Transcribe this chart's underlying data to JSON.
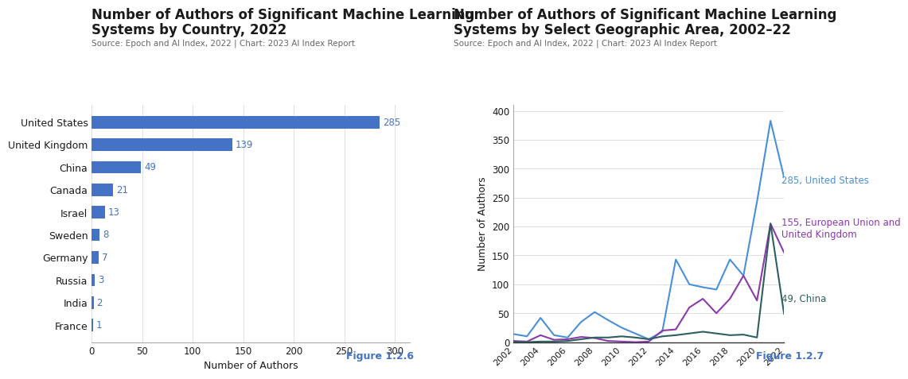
{
  "bar_chart": {
    "title_line1": "Number of Authors of Significant Machine Learning",
    "title_line2": "Systems by Country, 2022",
    "source": "Source: Epoch and AI Index, 2022 | Chart: 2023 AI Index Report",
    "xlabel": "Number of Authors",
    "figure_label": "Figure 1.2.6",
    "categories": [
      "France",
      "India",
      "Russia",
      "Germany",
      "Sweden",
      "Israel",
      "Canada",
      "China",
      "United Kingdom",
      "United States"
    ],
    "values": [
      1,
      2,
      3,
      7,
      8,
      13,
      21,
      49,
      139,
      285
    ],
    "bar_color": "#4472C4",
    "xlim": [
      0,
      315
    ],
    "xticks": [
      0,
      50,
      100,
      150,
      200,
      250,
      300
    ]
  },
  "line_chart": {
    "title_line1": "Number of Authors of Significant Machine Learning",
    "title_line2": "Systems by Select Geographic Area, 2002–22",
    "source": "Source: Epoch and AI Index, 2022 | Chart: 2023 AI Index Report",
    "ylabel": "Number of Authors",
    "figure_label": "Figure 1.2.7",
    "years": [
      2002,
      2003,
      2004,
      2005,
      2006,
      2007,
      2008,
      2009,
      2010,
      2011,
      2012,
      2013,
      2014,
      2015,
      2016,
      2017,
      2018,
      2019,
      2020,
      2021,
      2022
    ],
    "us_data": [
      14,
      10,
      42,
      12,
      8,
      35,
      52,
      38,
      25,
      15,
      5,
      18,
      143,
      100,
      95,
      91,
      143,
      115,
      243,
      383,
      285
    ],
    "eu_data": [
      2,
      1,
      12,
      4,
      5,
      9,
      7,
      2,
      1,
      0,
      1,
      20,
      22,
      60,
      75,
      50,
      75,
      115,
      72,
      205,
      155
    ],
    "china_data": [
      1,
      0,
      1,
      1,
      2,
      5,
      8,
      8,
      10,
      8,
      5,
      10,
      12,
      15,
      18,
      15,
      12,
      13,
      8,
      205,
      49
    ],
    "us_color": "#4A90D9",
    "eu_color": "#8B3AAA",
    "china_color": "#2D5F5F",
    "ylim": [
      0,
      410
    ],
    "yticks": [
      0,
      50,
      100,
      150,
      200,
      250,
      300,
      350,
      400
    ],
    "us_label": "285, United States",
    "eu_label": "155, European Union and\nUnited Kingdom",
    "china_label": "49, China"
  },
  "bg_color": "#ffffff",
  "text_color": "#1a1a1a",
  "title_fontsize": 12,
  "source_fontsize": 7.5,
  "figure_label_color": "#4472C4",
  "figure_label_fontsize": 9
}
